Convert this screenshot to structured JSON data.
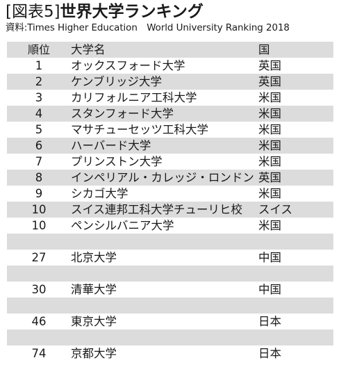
{
  "title": {
    "label": "[図表5]",
    "main": "世界大学ランキング"
  },
  "source": "資料:Times Higher Education　World University Ranking 2018",
  "table": {
    "headers": {
      "rank": "順位",
      "name": "大学名",
      "country": "国"
    },
    "rows": [
      {
        "rank": "1",
        "name": "オックスフォード大学",
        "country": "英国"
      },
      {
        "rank": "2",
        "name": "ケンブリッジ大学",
        "country": "英国"
      },
      {
        "rank": "3",
        "name": "カリフォルニア工科大学",
        "country": "米国"
      },
      {
        "rank": "4",
        "name": "スタンフォード大学",
        "country": "米国"
      },
      {
        "rank": "5",
        "name": "マサチューセッツ工科大学",
        "country": "米国"
      },
      {
        "rank": "6",
        "name": "ハーバード大学",
        "country": "米国"
      },
      {
        "rank": "7",
        "name": "プリンストン大学",
        "country": "米国"
      },
      {
        "rank": "8",
        "name": "インペリアル・カレッジ・ロンドン",
        "country": "英国"
      },
      {
        "rank": "9",
        "name": "シカゴ大学",
        "country": "米国"
      },
      {
        "rank": "10",
        "name": "スイス連邦工科大学チューリヒ校",
        "country": "スイス"
      },
      {
        "rank": "10",
        "name": "ペンシルバニア大学",
        "country": "米国"
      },
      {
        "rank": "27",
        "name": "北京大学",
        "country": "中国"
      },
      {
        "rank": "30",
        "name": "清華大学",
        "country": "中国"
      },
      {
        "rank": "46",
        "name": "東京大学",
        "country": "日本"
      },
      {
        "rank": "74",
        "name": "京都大学",
        "country": "日本"
      }
    ]
  },
  "colors": {
    "band": "#dcdcdc",
    "text": "#1a1a1a"
  }
}
